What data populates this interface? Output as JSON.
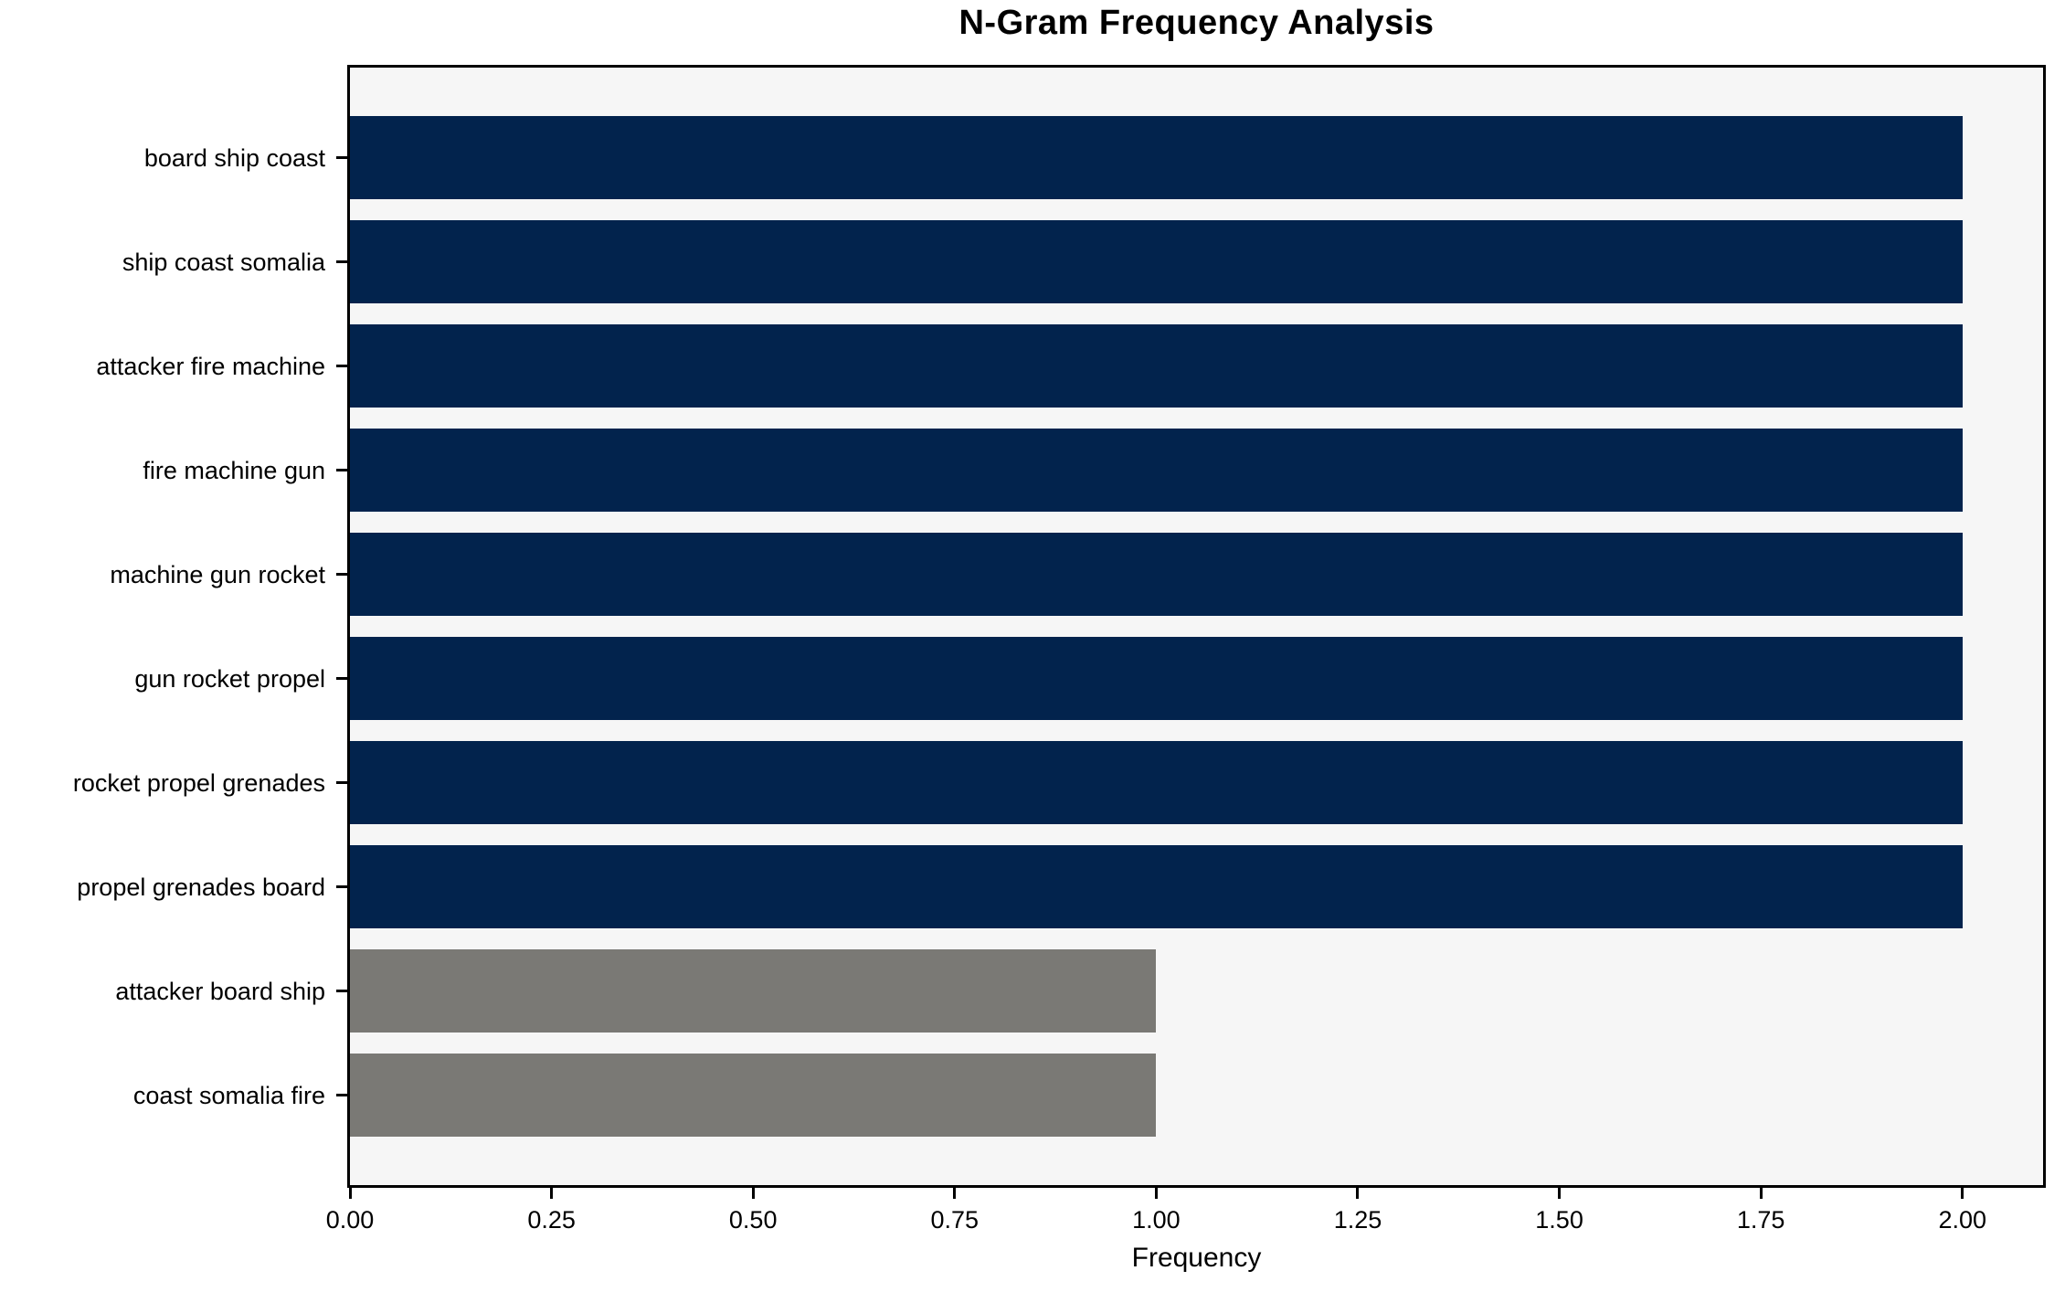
{
  "chart_data": {
    "type": "bar",
    "orientation": "horizontal",
    "title": "N-Gram Frequency Analysis",
    "xlabel": "Frequency",
    "ylabel": "",
    "categories": [
      "board ship coast",
      "ship coast somalia",
      "attacker fire machine",
      "fire machine gun",
      "machine gun rocket",
      "gun rocket propel",
      "rocket propel grenades",
      "propel grenades board",
      "attacker board ship",
      "coast somalia fire"
    ],
    "values": [
      2,
      2,
      2,
      2,
      2,
      2,
      2,
      2,
      1,
      1
    ],
    "bar_colors": [
      "#02234d",
      "#02234d",
      "#02234d",
      "#02234d",
      "#02234d",
      "#02234d",
      "#02234d",
      "#02234d",
      "#7a7975",
      "#7a7975"
    ],
    "xlim": [
      0,
      2.1
    ],
    "xtick_values": [
      0.0,
      0.25,
      0.5,
      0.75,
      1.0,
      1.25,
      1.5,
      1.75,
      2.0
    ],
    "xtick_labels": [
      "0.00",
      "0.25",
      "0.50",
      "0.75",
      "1.00",
      "1.25",
      "1.50",
      "1.75",
      "2.00"
    ],
    "grid": false,
    "legend": null,
    "colors": {
      "bar_frequent": "#02234d",
      "bar_infrequent": "#7a7975",
      "plot_background": "#f6f6f6",
      "figure_background": "#ffffff",
      "axis": "#000000",
      "text": "#000000"
    }
  }
}
